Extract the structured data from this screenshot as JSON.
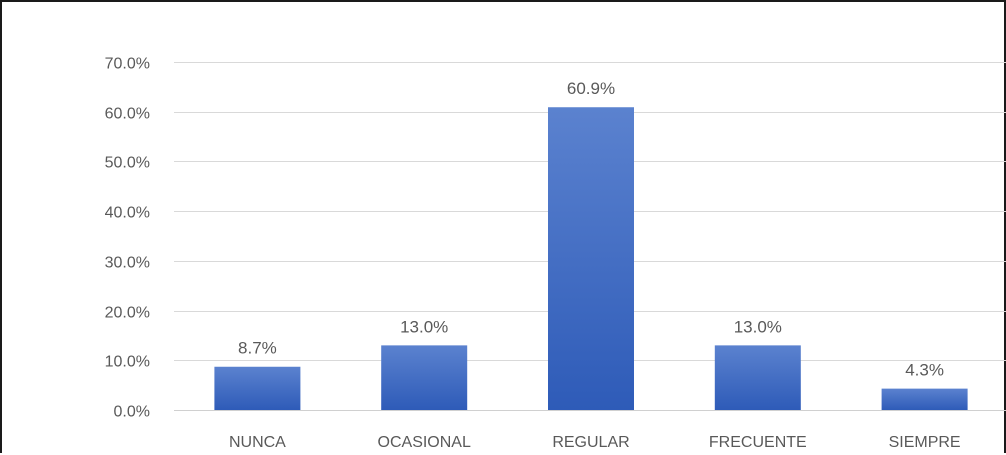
{
  "chart_data": {
    "type": "bar",
    "categories": [
      "NUNCA",
      "OCASIONAL",
      "REGULAR",
      "FRECUENTE",
      "SIEMPRE"
    ],
    "values": [
      8.7,
      13.0,
      60.9,
      13.0,
      4.3
    ],
    "data_labels": [
      "8.7%",
      "13.0%",
      "60.9%",
      "13.0%",
      "4.3%"
    ],
    "yticks": [
      0,
      10,
      20,
      30,
      40,
      50,
      60,
      70
    ],
    "ytick_labels": [
      "0.0%",
      "10.0%",
      "20.0%",
      "30.0%",
      "40.0%",
      "50.0%",
      "60.0%",
      "70.0%"
    ],
    "ylim": [
      0,
      70
    ],
    "grid": true,
    "legend": "none",
    "title": "",
    "xlabel": "",
    "ylabel": "",
    "colors": {
      "bar_top": "#5b82cf",
      "bar_bottom": "#2e5bb8",
      "gridline": "#d9d9d9",
      "text": "#595959"
    }
  }
}
